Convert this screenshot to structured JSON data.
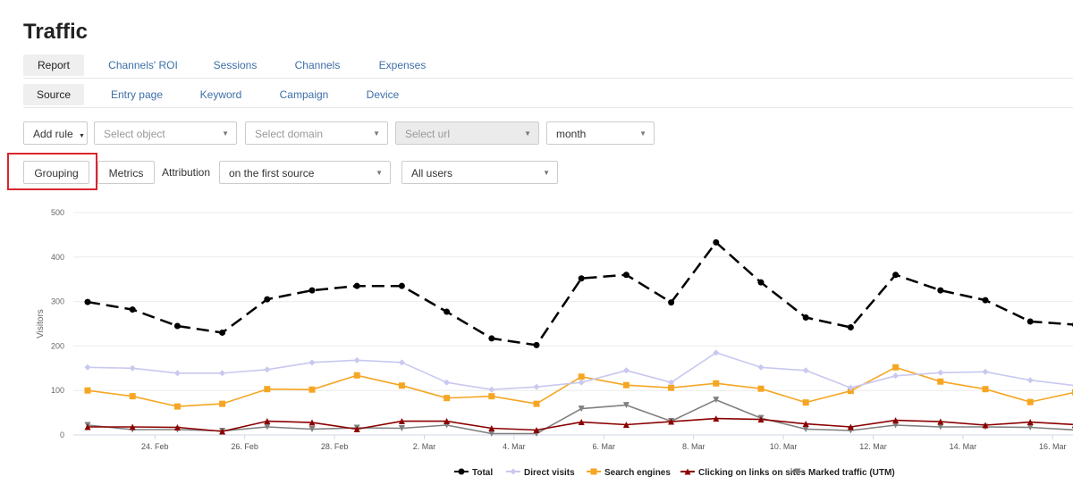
{
  "page": {
    "title": "Traffic"
  },
  "tabs_primary": [
    {
      "label": "Report",
      "active": true
    },
    {
      "label": "Channels' ROI",
      "active": false
    },
    {
      "label": "Sessions",
      "active": false
    },
    {
      "label": "Channels",
      "active": false
    },
    {
      "label": "Expenses",
      "active": false
    }
  ],
  "tabs_secondary": [
    {
      "label": "Source",
      "active": true
    },
    {
      "label": "Entry page",
      "active": false
    },
    {
      "label": "Keyword",
      "active": false
    },
    {
      "label": "Campaign",
      "active": false
    },
    {
      "label": "Device",
      "active": false
    }
  ],
  "filters": {
    "add_rule": "Add rule",
    "select_object": "Select object",
    "select_domain": "Select domain",
    "select_url": "Select url",
    "period": "month",
    "grouping": "Grouping",
    "metrics": "Metrics",
    "attribution_label": "Attribution",
    "attribution_value": "on the first source",
    "users": "All users"
  },
  "colors": {
    "accent_link": "#3d6fa8",
    "highlight": "#d9262c"
  },
  "chart_data": {
    "type": "line",
    "ylabel": "Visitors",
    "xlabel": "",
    "ylim": [
      0,
      500
    ],
    "yticks": [
      0,
      100,
      200,
      300,
      400,
      500
    ],
    "x": [
      "23. Feb",
      "24. Feb",
      "25. Feb",
      "26. Feb",
      "27. Feb",
      "28. Feb",
      "1. Mar",
      "2. Mar",
      "3. Mar",
      "4. Mar",
      "5. Mar",
      "6. Mar",
      "7. Mar",
      "8. Mar",
      "9. Mar",
      "10. Mar",
      "11. Mar",
      "12. Mar",
      "13. Mar",
      "14. Mar",
      "15. Mar",
      "16. Mar",
      "17. Mar"
    ],
    "xticks": [
      "24. Feb",
      "26. Feb",
      "28. Feb",
      "2. Mar",
      "4. Mar",
      "6. Mar",
      "8. Mar",
      "10. Mar",
      "12. Mar",
      "14. Mar",
      "16. Mar"
    ],
    "series": [
      {
        "name": "Total",
        "color": "#000000",
        "marker": "circle",
        "dash": true,
        "values": [
          299,
          282,
          245,
          230,
          305,
          325,
          335,
          335,
          277,
          217,
          202,
          352,
          360,
          298,
          433,
          343,
          264,
          242,
          360,
          325,
          303,
          255,
          248
        ]
      },
      {
        "name": "Direct visits",
        "color": "#c8c8f0",
        "marker": "diamond",
        "dash": false,
        "values": [
          152,
          150,
          139,
          139,
          147,
          163,
          168,
          163,
          118,
          102,
          108,
          118,
          145,
          118,
          185,
          152,
          145,
          106,
          133,
          140,
          142,
          123,
          111
        ]
      },
      {
        "name": "Search engines",
        "color": "#f5a623",
        "marker": "square",
        "dash": false,
        "values": [
          100,
          87,
          64,
          70,
          103,
          102,
          134,
          111,
          83,
          87,
          70,
          131,
          112,
          106,
          116,
          104,
          73,
          99,
          152,
          120,
          103,
          74,
          96
        ]
      },
      {
        "name": "Clicking on links on sites",
        "color": "#8b0000",
        "marker": "triangle",
        "dash": false,
        "values": [
          18,
          18,
          17,
          8,
          31,
          28,
          13,
          31,
          31,
          15,
          11,
          29,
          23,
          30,
          37,
          35,
          25,
          18,
          33,
          30,
          22,
          29,
          23
        ]
      },
      {
        "name": "Marked traffic (UTM)",
        "color": "#808080",
        "marker": "triangle-down",
        "dash": false,
        "values": [
          22,
          12,
          12,
          9,
          18,
          13,
          16,
          15,
          22,
          3,
          3,
          59,
          67,
          31,
          79,
          38,
          13,
          10,
          22,
          18,
          18,
          17,
          11
        ]
      }
    ],
    "legend_position": "bottom-center",
    "grid": true
  }
}
